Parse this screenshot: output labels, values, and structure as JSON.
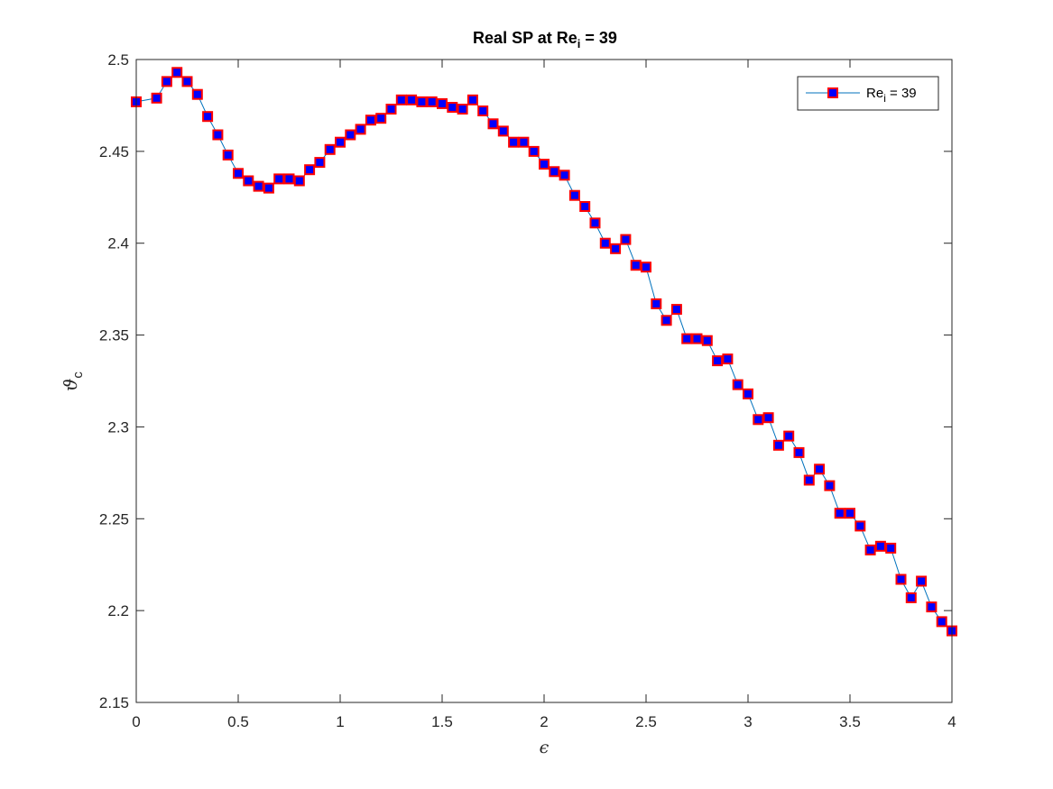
{
  "chart_data": {
    "type": "line",
    "title": {
      "main": "Real SP at Re",
      "sub": "i",
      "tail": " = 39"
    },
    "xlabel": "ϵ",
    "ylabel": {
      "main": "ϑ",
      "sub": "c"
    },
    "xlim": [
      0,
      4
    ],
    "ylim": [
      2.15,
      2.5
    ],
    "xticks": [
      "0",
      "0.5",
      "1",
      "1.5",
      "2",
      "2.5",
      "3",
      "3.5",
      "4"
    ],
    "yticks": [
      "2.15",
      "2.2",
      "2.25",
      "2.3",
      "2.35",
      "2.4",
      "2.45",
      "2.5"
    ],
    "grid": false,
    "legend_position": "top-right",
    "series": [
      {
        "name": {
          "main": "Re",
          "sub": "i",
          "tail": " = 39"
        },
        "line_color": "#0072BD",
        "marker": "square",
        "marker_edge_color": "#FF0000",
        "marker_face_color": "#0000FF",
        "x": [
          0,
          0.1,
          0.15,
          0.2,
          0.25,
          0.3,
          0.35,
          0.4,
          0.45,
          0.5,
          0.55,
          0.6,
          0.65,
          0.7,
          0.75,
          0.8,
          0.85,
          0.9,
          0.95,
          1,
          1.05,
          1.1,
          1.15,
          1.2,
          1.25,
          1.3,
          1.35,
          1.4,
          1.45,
          1.5,
          1.55,
          1.6,
          1.65,
          1.7,
          1.75,
          1.8,
          1.85,
          1.9,
          1.95,
          2,
          2.05,
          2.1,
          2.15,
          2.2,
          2.25,
          2.3,
          2.35,
          2.4,
          2.45,
          2.5,
          2.55,
          2.6,
          2.65,
          2.7,
          2.75,
          2.8,
          2.85,
          2.9,
          2.95,
          3,
          3.05,
          3.1,
          3.15,
          3.2,
          3.25,
          3.3,
          3.35,
          3.4,
          3.45,
          3.5,
          3.55,
          3.6,
          3.65,
          3.7,
          3.75,
          3.8,
          3.85,
          3.9,
          3.95,
          4
        ],
        "y": [
          2.477,
          2.479,
          2.488,
          2.493,
          2.488,
          2.481,
          2.469,
          2.459,
          2.448,
          2.438,
          2.434,
          2.431,
          2.43,
          2.435,
          2.435,
          2.434,
          2.44,
          2.444,
          2.451,
          2.455,
          2.459,
          2.462,
          2.467,
          2.468,
          2.473,
          2.478,
          2.478,
          2.477,
          2.477,
          2.476,
          2.474,
          2.473,
          2.478,
          2.472,
          2.465,
          2.461,
          2.455,
          2.455,
          2.45,
          2.443,
          2.439,
          2.437,
          2.426,
          2.42,
          2.411,
          2.4,
          2.397,
          2.402,
          2.388,
          2.387,
          2.367,
          2.358,
          2.364,
          2.348,
          2.348,
          2.347,
          2.336,
          2.337,
          2.323,
          2.318,
          2.304,
          2.305,
          2.29,
          2.295,
          2.286,
          2.271,
          2.277,
          2.268,
          2.253,
          2.253,
          2.246,
          2.233,
          2.235,
          2.234,
          2.217,
          2.207,
          2.216,
          2.202,
          2.194,
          2.189
        ]
      }
    ]
  }
}
